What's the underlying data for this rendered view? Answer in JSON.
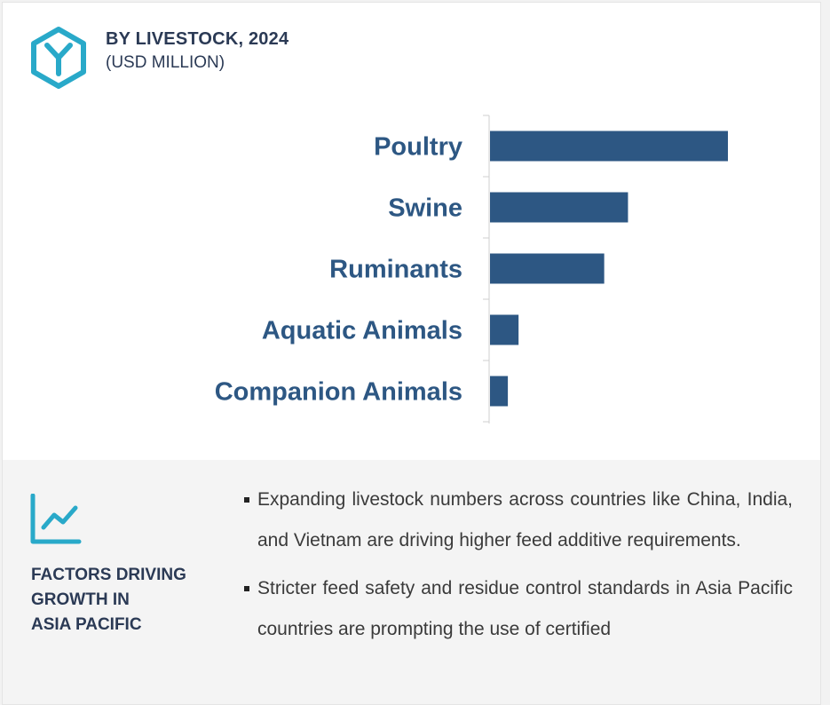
{
  "header": {
    "title": "BY LIVESTOCK, 2024",
    "subtitle": "(USD MILLION)",
    "logo_color": "#29a9c9"
  },
  "chart_data": {
    "type": "bar",
    "orientation": "horizontal",
    "categories": [
      "Poultry",
      "Swine",
      "Ruminants",
      "Aquatic Animals",
      "Companion Animals"
    ],
    "values": [
      100,
      58,
      48,
      12,
      7.5
    ],
    "title": "BY LIVESTOCK, 2024",
    "subtitle": "(USD MILLION)",
    "xlabel": "",
    "ylabel": "",
    "xlim": [
      0,
      100
    ],
    "grid": false,
    "legend": "none",
    "bar_color": "#2d5783",
    "label_color": "#2d5783"
  },
  "factors": {
    "title_lines": [
      "FACTORS DRIVING",
      "GROWTH IN",
      "ASIA PACIFIC"
    ],
    "icon": "trend-chart-icon",
    "icon_color": "#29a9c9",
    "bullets": [
      "Expanding livestock numbers across countries like China, India, and Vietnam are driving higher feed additive requirements.",
      "Stricter feed safety and residue control standards in Asia Pacific countries are prompting the use of certified"
    ]
  }
}
